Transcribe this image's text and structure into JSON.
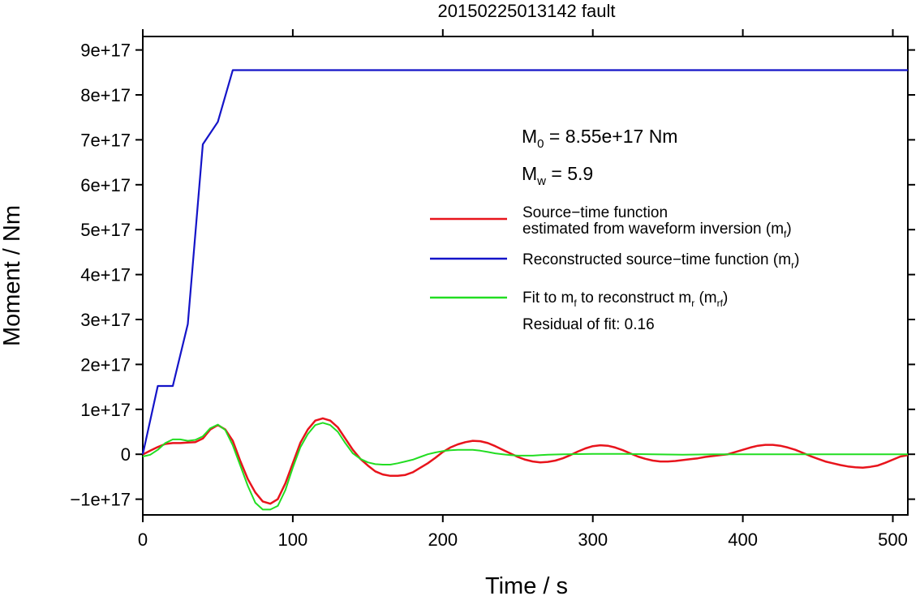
{
  "chart_data": {
    "type": "line",
    "title": "20150225013142 fault",
    "xlabel": "Time / s",
    "ylabel": "Moment / Nm",
    "xlim": [
      0,
      510
    ],
    "ylim": [
      -1.35e+17,
      9.3e+17
    ],
    "x_ticks": [
      0,
      100,
      200,
      300,
      400,
      500
    ],
    "x_tick_labels": [
      "0",
      "100",
      "200",
      "300",
      "400",
      "500"
    ],
    "y_ticks": [
      -1e+17,
      0,
      1e+17,
      2e+17,
      3e+17,
      4e+17,
      5e+17,
      6e+17,
      7e+17,
      8e+17,
      9e+17
    ],
    "y_tick_labels": [
      "−1e+17",
      "0",
      "1e+17",
      "2e+17",
      "3e+17",
      "4e+17",
      "5e+17",
      "6e+17",
      "7e+17",
      "8e+17",
      "9e+17"
    ],
    "grid": false,
    "legend_position": "right",
    "series": [
      {
        "name": "Source−time function estimated from waveform inversion (m_f)",
        "color": "#e8141c",
        "x": [
          0,
          5,
          10,
          15,
          20,
          25,
          30,
          35,
          40,
          45,
          50,
          55,
          60,
          65,
          70,
          75,
          80,
          85,
          90,
          95,
          100,
          105,
          110,
          115,
          120,
          125,
          130,
          135,
          140,
          145,
          150,
          155,
          160,
          165,
          170,
          175,
          180,
          185,
          190,
          195,
          200,
          205,
          210,
          215,
          220,
          225,
          230,
          235,
          240,
          245,
          250,
          255,
          260,
          265,
          270,
          275,
          280,
          285,
          290,
          295,
          300,
          305,
          310,
          315,
          320,
          325,
          330,
          335,
          340,
          345,
          350,
          355,
          360,
          365,
          370,
          375,
          380,
          385,
          390,
          395,
          400,
          405,
          410,
          415,
          420,
          425,
          430,
          435,
          440,
          445,
          450,
          455,
          460,
          465,
          470,
          475,
          480,
          485,
          490,
          495,
          500,
          505,
          510
        ],
        "y": [
          -500000000000000.0,
          8000000000000000.0,
          1.6e+16,
          2.3e+16,
          2.5e+16,
          2.5e+16,
          2.6e+16,
          2.7e+16,
          3.5e+16,
          5.5e+16,
          6.5e+16,
          5.5e+16,
          3e+16,
          -1.5e+16,
          -5.5e+16,
          -8.5e+16,
          -1.05e+17,
          -1.1e+17,
          -1e+17,
          -6.5e+16,
          -2e+16,
          2.5e+16,
          5.5e+16,
          7.5e+16,
          8e+16,
          7.5e+16,
          6e+16,
          3.5e+16,
          1e+16,
          -1e+16,
          -2.5e+16,
          -3.8e+16,
          -4.5e+16,
          -4.8e+16,
          -4.8e+16,
          -4.6e+16,
          -4e+16,
          -3e+16,
          -2e+16,
          -8000000000000000.0,
          5000000000000000.0,
          1.5e+16,
          2.2e+16,
          2.7e+16,
          3e+16,
          2.9e+16,
          2.5e+16,
          1.8e+16,
          1e+16,
          2000000000000000.0,
          -6000000000000000.0,
          -1.2e+16,
          -1.6e+16,
          -1.8e+16,
          -1.7e+16,
          -1.4e+16,
          -9000000000000000.0,
          -2000000000000000.0,
          6000000000000000.0,
          1.3e+16,
          1.8e+16,
          2e+16,
          1.9e+16,
          1.5e+16,
          9000000000000000.0,
          2000000000000000.0,
          -5000000000000000.0,
          -1e+16,
          -1.4e+16,
          -1.6e+16,
          -1.6e+16,
          -1.5e+16,
          -1.3e+16,
          -1.1e+16,
          -9000000000000000.0,
          -6000000000000000.0,
          -4000000000000000.0,
          -2000000000000000.0,
          0.0,
          5000000000000000.0,
          1e+16,
          1.5e+16,
          1.9e+16,
          2.1e+16,
          2.1e+16,
          1.9e+16,
          1.5e+16,
          1e+16,
          3000000000000000.0,
          -4000000000000000.0,
          -1e+16,
          -1.6e+16,
          -2e+16,
          -2.4e+16,
          -2.7e+16,
          -2.9e+16,
          -3e+16,
          -2.8e+16,
          -2.5e+16,
          -1.9e+16,
          -1.2e+16,
          -5000000000000000.0,
          -2000000000000000.0
        ]
      },
      {
        "name": "Reconstructed source−time function (m_r)",
        "color": "#1414c8",
        "x": [
          0,
          10,
          20,
          30,
          40,
          50,
          60,
          510
        ],
        "y": [
          0,
          1.52e+17,
          1.52e+17,
          2.9e+17,
          6.9e+17,
          7.4e+17,
          8.55e+17,
          8.55e+17
        ]
      },
      {
        "name": "Fit to m_f to reconstruct m_r (m_rf)",
        "color": "#22dd22",
        "x": [
          0,
          5,
          10,
          15,
          20,
          25,
          30,
          35,
          40,
          45,
          50,
          55,
          60,
          65,
          70,
          75,
          80,
          85,
          90,
          95,
          100,
          105,
          110,
          115,
          120,
          125,
          130,
          135,
          140,
          145,
          150,
          155,
          160,
          165,
          170,
          175,
          180,
          185,
          190,
          195,
          200,
          205,
          210,
          215,
          220,
          225,
          230,
          235,
          240,
          245,
          250,
          255,
          260,
          265,
          270,
          280,
          300,
          320,
          340,
          360,
          380,
          400,
          420,
          440,
          460,
          480,
          500,
          510
        ],
        "y": [
          -5000000000000000.0,
          -1000000000000000.0,
          1e+16,
          2.5e+16,
          3.3e+16,
          3.3e+16,
          3e+16,
          3.2e+16,
          4e+16,
          5.8e+16,
          6.6e+16,
          5.4e+16,
          2e+16,
          -2.5e+16,
          -7e+16,
          -1.08e+17,
          -1.23e+17,
          -1.23e+17,
          -1.15e+17,
          -8e+16,
          -3e+16,
          1.5e+16,
          4.5e+16,
          6.5e+16,
          7e+16,
          6.5e+16,
          5e+16,
          2.5e+16,
          2000000000000000.0,
          -1e+16,
          -1.8e+16,
          -2.2e+16,
          -2.3e+16,
          -2.3e+16,
          -2e+16,
          -1.6e+16,
          -1.2e+16,
          -6000000000000000.0,
          0.0,
          4000000000000000.0,
          7000000000000000.0,
          9000000000000000.0,
          1e+16,
          1e+16,
          1e+16,
          8000000000000000.0,
          5000000000000000.0,
          2000000000000000.0,
          0.0,
          -2000000000000000.0,
          -3000000000000000.0,
          -3000000000000000.0,
          -3000000000000000.0,
          -2000000000000000.0,
          -1000000000000000.0,
          0.0,
          1000000000000000.0,
          1000000000000000.0,
          0.0,
          -1000000000000000.0,
          0.0,
          0.0,
          0.0,
          0.0,
          0.0,
          0.0,
          0.0,
          0.0
        ]
      }
    ],
    "annotations": {
      "m0": {
        "prefix": "M",
        "sub": "0",
        "suffix": " = 8.55e+17 Nm"
      },
      "mw": {
        "prefix": "M",
        "sub": "w",
        "suffix": " = 5.9"
      },
      "legend_mf_line1": "Source−time function",
      "legend_mf_line2": {
        "text": "estimated from waveform inversion (m",
        "sub": "f",
        "end": ")"
      },
      "legend_mr": {
        "text": "Reconstructed source−time function (m",
        "sub": "r",
        "end": ")"
      },
      "legend_mrf": {
        "text1": "Fit to m",
        "sub1": "f",
        "text2": " to reconstruct m",
        "sub2": "r",
        "text3": " (m",
        "sub3": "rf",
        "end": ")"
      },
      "residual": "Residual of fit: 0.16"
    }
  }
}
